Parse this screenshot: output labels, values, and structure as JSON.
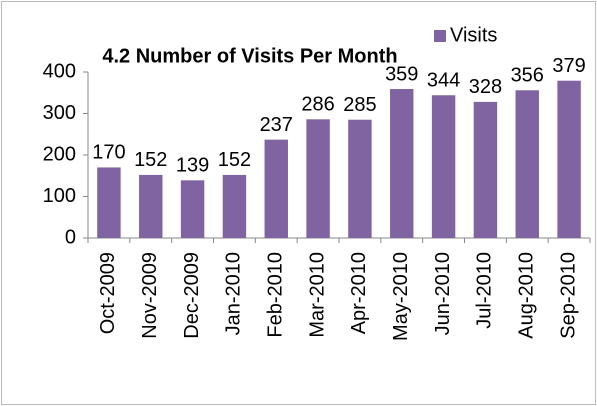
{
  "chart_data": {
    "type": "bar",
    "title": "4.2 Number of Visits Per Month",
    "categories": [
      "Oct-2009",
      "Nov-2009",
      "Dec-2009",
      "Jan-2010",
      "Feb-2010",
      "Mar-2010",
      "Apr-2010",
      "May-2010",
      "Jun-2010",
      "Jul-2010",
      "Aug-2010",
      "Sep-2010"
    ],
    "series": [
      {
        "name": "Visits",
        "color": "#8064a2",
        "values": [
          170,
          152,
          139,
          152,
          237,
          286,
          285,
          359,
          344,
          328,
          356,
          379
        ]
      }
    ],
    "ylim": [
      0,
      400
    ],
    "yticks": [
      0,
      100,
      200,
      300,
      400
    ],
    "grid": false,
    "legend": "top-right"
  }
}
